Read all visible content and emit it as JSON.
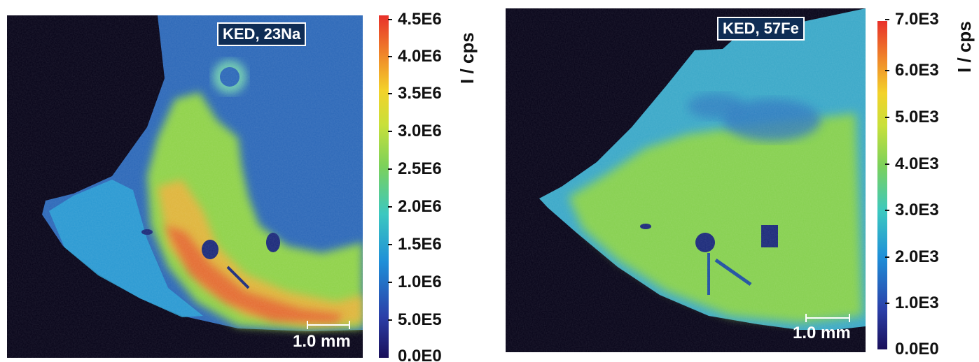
{
  "panels": [
    {
      "label": "KED, 23Na",
      "scale_label": "1.0 mm",
      "unit_label": "I / cps",
      "colorbar_ticks": [
        "4.5E6",
        "4.0E6",
        "3.5E6",
        "3.0E6",
        "2.5E6",
        "2.0E6",
        "1.5E6",
        "1.0E6",
        "5.0E5",
        "0.0E0"
      ]
    },
    {
      "label": "KED, 57Fe",
      "scale_label": "1.0 mm",
      "unit_label": "I / cps",
      "colorbar_ticks": [
        "7.0E3",
        "6.0E3",
        "5.0E3",
        "4.0E3",
        "3.0E3",
        "2.0E3",
        "1.0E3",
        "0.0E0"
      ]
    }
  ],
  "colormap": [
    "#1a0f5a",
    "#2b3fa8",
    "#1f8fd8",
    "#3cc8c0",
    "#7cd15a",
    "#c8e03a",
    "#f3d22a",
    "#f08a2a",
    "#e8302a"
  ]
}
